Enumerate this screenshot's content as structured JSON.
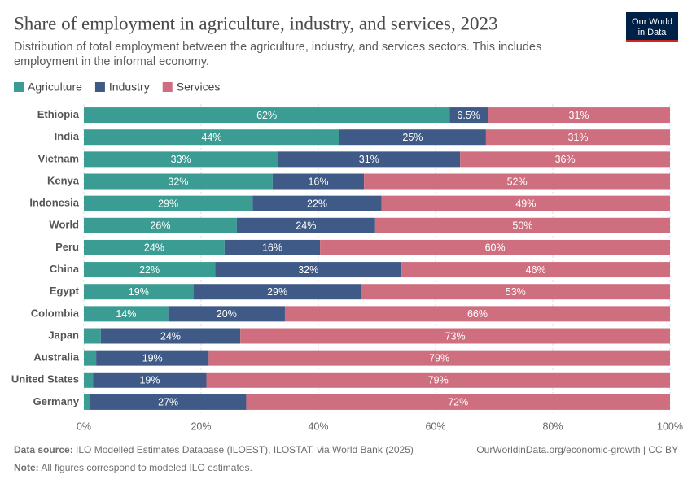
{
  "chart_data": {
    "type": "stacked-barh",
    "title": "Share of employment in agriculture, industry, and services, 2023",
    "subtitle": "Distribution of total employment between the agriculture, industry, and services sectors. This includes employment in the informal economy.",
    "logo": [
      "Our World",
      "in Data"
    ],
    "categories": [
      "Ethiopia",
      "India",
      "Vietnam",
      "Kenya",
      "Indonesia",
      "World",
      "Peru",
      "China",
      "Egypt",
      "Colombia",
      "Japan",
      "Australia",
      "United States",
      "Germany"
    ],
    "series": [
      {
        "name": "Agriculture",
        "color": "#3a9c93",
        "values": [
          62.4,
          43.6,
          33.1,
          32.2,
          28.8,
          26.1,
          24.0,
          22.4,
          18.7,
          14.4,
          2.9,
          2.1,
          1.6,
          1.1
        ],
        "value_labels": [
          "62%",
          "44%",
          "33%",
          "32%",
          "29%",
          "26%",
          "24%",
          "22%",
          "19%",
          "14%",
          null,
          null,
          null,
          null
        ]
      },
      {
        "name": "Industry",
        "color": "#3f5a86",
        "values": [
          6.5,
          25.0,
          31.1,
          15.6,
          22.0,
          23.6,
          16.3,
          31.8,
          28.6,
          19.9,
          23.8,
          19.2,
          19.3,
          26.6
        ],
        "value_labels": [
          "6.5%",
          "25%",
          "31%",
          "16%",
          "22%",
          "24%",
          "16%",
          "32%",
          "29%",
          "20%",
          "24%",
          "19%",
          "19%",
          "27%"
        ]
      },
      {
        "name": "Services",
        "color": "#cf6e7f",
        "values": [
          31.1,
          31.4,
          35.8,
          52.2,
          49.2,
          50.3,
          59.7,
          45.8,
          52.7,
          65.7,
          73.3,
          78.7,
          79.1,
          72.3
        ],
        "value_labels": [
          "31%",
          "31%",
          "36%",
          "52%",
          "49%",
          "50%",
          "60%",
          "46%",
          "53%",
          "66%",
          "73%",
          "79%",
          "79%",
          "72%"
        ]
      }
    ],
    "xlim": [
      0,
      100
    ],
    "xticks": [
      {
        "value": 0,
        "label": "0%"
      },
      {
        "value": 20,
        "label": "20%"
      },
      {
        "value": 40,
        "label": "40%"
      },
      {
        "value": 60,
        "label": "60%"
      },
      {
        "value": 80,
        "label": "80%"
      },
      {
        "value": 100,
        "label": "100%"
      }
    ],
    "grid": true,
    "source_label": "Data source:",
    "source": "ILO Modelled Estimates Database (ILOEST), ILOSTAT, via World Bank (2025)",
    "url": "OurWorldinData.org/economic-growth | CC BY",
    "note_label": "Note:",
    "note": "All figures correspond to modeled ILO estimates."
  }
}
